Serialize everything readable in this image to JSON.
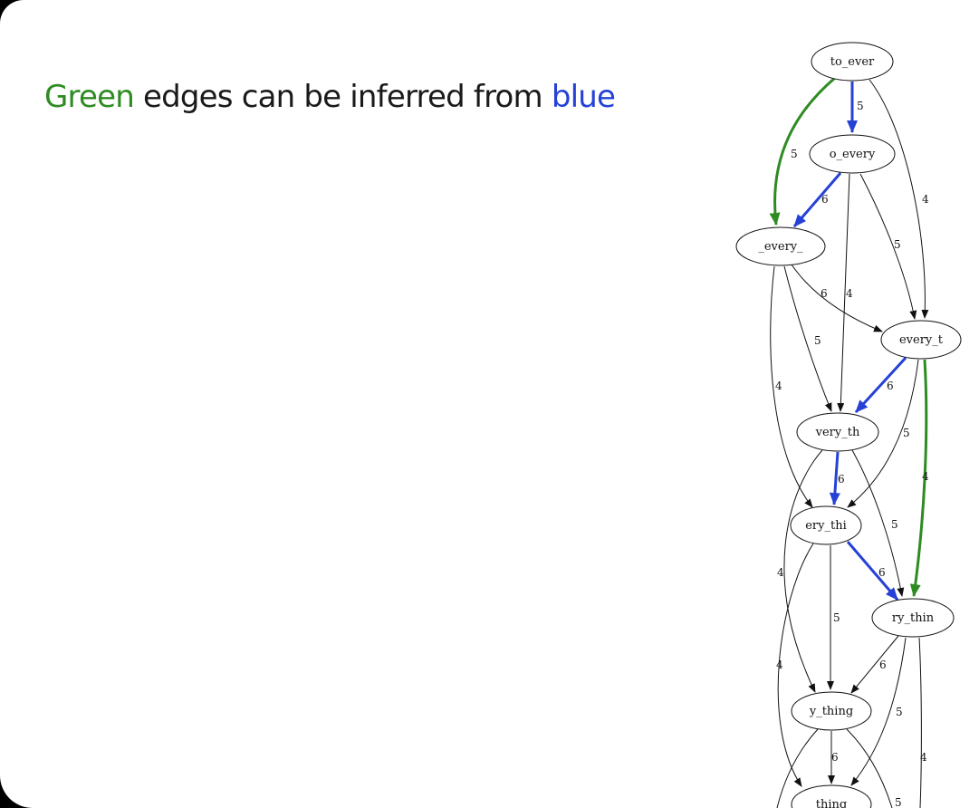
{
  "headline": {
    "word_green": "Green",
    "middle_text": " edges can be inferred from ",
    "word_blue": "blue"
  },
  "colors": {
    "green": "#2e8b22",
    "blue": "#2541d6",
    "black": "#111111"
  },
  "graph": {
    "nodes": [
      {
        "id": "to_ever",
        "label": "to_ever"
      },
      {
        "id": "o_every",
        "label": "o_every"
      },
      {
        "id": "_every_",
        "label": "_every_"
      },
      {
        "id": "every_t",
        "label": "every_t"
      },
      {
        "id": "very_th",
        "label": "very_th"
      },
      {
        "id": "ery_thi",
        "label": "ery_thi"
      },
      {
        "id": "ry_thin",
        "label": "ry_thin"
      },
      {
        "id": "y_thing",
        "label": "y_thing"
      },
      {
        "id": "_thing_",
        "label": "_thing_"
      }
    ],
    "edges": [
      {
        "from": "to_ever",
        "to": "o_every",
        "weight": "5",
        "kind": "blue"
      },
      {
        "from": "to_ever",
        "to": "_every_",
        "weight": "5",
        "kind": "green"
      },
      {
        "from": "to_ever",
        "to": "every_t",
        "weight": "4",
        "kind": "black"
      },
      {
        "from": "o_every",
        "to": "_every_",
        "weight": "6",
        "kind": "blue"
      },
      {
        "from": "o_every",
        "to": "every_t",
        "weight": "5",
        "kind": "black"
      },
      {
        "from": "o_every",
        "to": "very_th",
        "weight": "4",
        "kind": "black"
      },
      {
        "from": "_every_",
        "to": "every_t",
        "weight": "6",
        "kind": "black"
      },
      {
        "from": "_every_",
        "to": "very_th",
        "weight": "5",
        "kind": "black"
      },
      {
        "from": "_every_",
        "to": "ery_thi",
        "weight": "4",
        "kind": "black"
      },
      {
        "from": "every_t",
        "to": "very_th",
        "weight": "6",
        "kind": "blue"
      },
      {
        "from": "every_t",
        "to": "ery_thi",
        "weight": "5",
        "kind": "black"
      },
      {
        "from": "every_t",
        "to": "ry_thin",
        "weight": "4",
        "kind": "green"
      },
      {
        "from": "very_th",
        "to": "ery_thi",
        "weight": "6",
        "kind": "blue"
      },
      {
        "from": "very_th",
        "to": "ry_thin",
        "weight": "5",
        "kind": "black"
      },
      {
        "from": "very_th",
        "to": "y_thing",
        "weight": "4",
        "kind": "black"
      },
      {
        "from": "ery_thi",
        "to": "ry_thin",
        "weight": "6",
        "kind": "blue"
      },
      {
        "from": "ery_thi",
        "to": "y_thing",
        "weight": "5",
        "kind": "black"
      },
      {
        "from": "ery_thi",
        "to": "_thing_",
        "weight": "4",
        "kind": "black"
      },
      {
        "from": "ry_thin",
        "to": "y_thing",
        "weight": "6",
        "kind": "black"
      },
      {
        "from": "ry_thin",
        "to": "_thing_",
        "weight": "5",
        "kind": "black"
      },
      {
        "from": "ry_thin",
        "to": "below",
        "weight": "4",
        "kind": "black"
      },
      {
        "from": "y_thing",
        "to": "_thing_",
        "weight": "6",
        "kind": "black"
      },
      {
        "from": "y_thing",
        "to": "below_left",
        "weight": "",
        "kind": "black"
      },
      {
        "from": "y_thing",
        "to": "below_right",
        "weight": "5",
        "kind": "black"
      }
    ]
  }
}
